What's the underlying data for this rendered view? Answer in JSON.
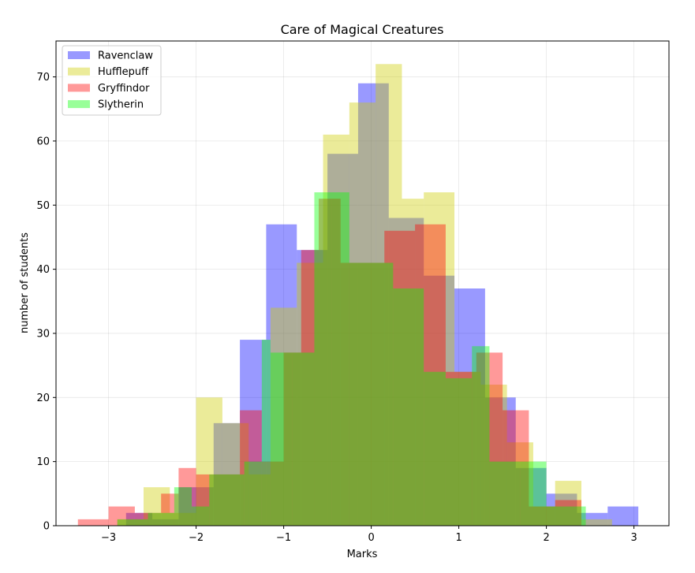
{
  "chart_data": {
    "type": "histogram",
    "title": "Care of Magical Creatures",
    "xlabel": "Marks",
    "ylabel": "number of students",
    "xlim": [
      -3.6,
      3.4
    ],
    "ylim": [
      0,
      75.6
    ],
    "xticks": [
      -3,
      -2,
      -1,
      0,
      1,
      2,
      3
    ],
    "xtick_labels": [
      "−3",
      "−2",
      "−1",
      "0",
      "1",
      "2",
      "3"
    ],
    "yticks": [
      0,
      10,
      20,
      30,
      40,
      50,
      60,
      70
    ],
    "ytick_labels": [
      "0",
      "10",
      "20",
      "30",
      "40",
      "50",
      "60",
      "70"
    ],
    "grid": true,
    "legend_position": "upper-left",
    "opacity": 0.4,
    "series": [
      {
        "name": "Ravenclaw",
        "color": "#0000ff",
        "edges": [
          -2.8,
          -2.5,
          -2.2,
          -1.8,
          -1.5,
          -1.2,
          -0.85,
          -0.5,
          -0.15,
          0.2,
          0.6,
          0.95,
          1.3,
          1.65,
          2.0,
          2.35,
          2.7,
          3.05
        ],
        "counts": [
          2,
          1,
          6,
          16,
          29,
          47,
          43,
          58,
          69,
          48,
          39,
          37,
          20,
          9,
          5,
          2,
          3
        ]
      },
      {
        "name": "Hufflepuff",
        "color": "#cccc00",
        "edges": [
          -2.9,
          -2.6,
          -2.3,
          -2.0,
          -1.7,
          -1.4,
          -1.15,
          -0.85,
          -0.55,
          -0.25,
          0.05,
          0.35,
          0.6,
          0.95,
          1.25,
          1.55,
          1.85,
          2.1,
          2.4,
          2.75
        ],
        "counts": [
          1,
          6,
          2,
          20,
          16,
          8,
          34,
          41,
          61,
          66,
          72,
          51,
          52,
          24,
          22,
          13,
          3,
          7,
          1
        ]
      },
      {
        "name": "Gryffindor",
        "color": "#ff0000",
        "edges": [
          -3.35,
          -3.0,
          -2.7,
          -2.4,
          -2.2,
          -2.0,
          -1.8,
          -1.5,
          -1.25,
          -1.0,
          -0.8,
          -0.6,
          -0.35,
          -0.1,
          0.15,
          0.5,
          0.85,
          1.2,
          1.5,
          1.8,
          2.1,
          2.4
        ],
        "counts": [
          1,
          3,
          2,
          5,
          9,
          8,
          8,
          18,
          10,
          27,
          43,
          51,
          41,
          41,
          46,
          47,
          24,
          27,
          18,
          3,
          4
        ]
      },
      {
        "name": "Slytherin",
        "color": "#00ff00",
        "edges": [
          -2.9,
          -2.55,
          -2.25,
          -2.05,
          -1.85,
          -1.6,
          -1.45,
          -1.25,
          -1.15,
          -0.9,
          -0.65,
          -0.45,
          -0.25,
          0.0,
          0.25,
          0.6,
          0.85,
          1.15,
          1.35,
          1.7,
          2.0,
          2.45
        ],
        "counts": [
          1,
          2,
          6,
          3,
          8,
          8,
          10,
          29,
          27,
          27,
          52,
          52,
          41,
          41,
          37,
          24,
          23,
          28,
          10,
          10,
          3
        ]
      }
    ]
  }
}
